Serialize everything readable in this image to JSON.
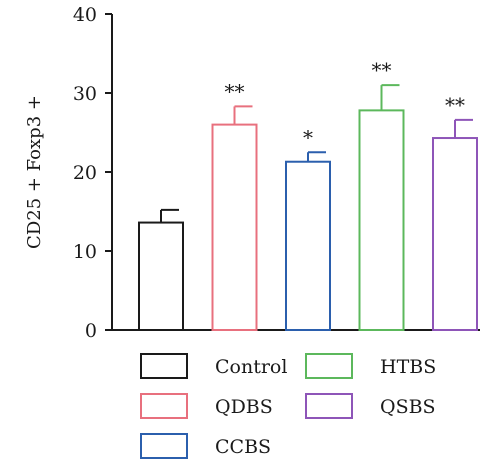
{
  "chart_data": {
    "type": "bar",
    "ylabel": "CD25 + Foxp3 +",
    "ylim": [
      0,
      40
    ],
    "yticks": [
      0,
      10,
      20,
      30,
      40
    ],
    "grid": false,
    "legend_position": "bottom",
    "bars": [
      {
        "name": "Control",
        "value": 13.6,
        "error": 1.6,
        "significance": "",
        "color": "#1a1a1a"
      },
      {
        "name": "QDBS",
        "value": 26.0,
        "error": 2.3,
        "significance": "**",
        "color": "#e8707e"
      },
      {
        "name": "CCBS",
        "value": 21.3,
        "error": 1.2,
        "significance": "*",
        "color": "#2b5fad"
      },
      {
        "name": "HTBS",
        "value": 27.8,
        "error": 3.2,
        "significance": "**",
        "color": "#5cb85c"
      },
      {
        "name": "QSBS",
        "value": 24.3,
        "error": 2.3,
        "significance": "**",
        "color": "#8e55b8"
      }
    ]
  }
}
